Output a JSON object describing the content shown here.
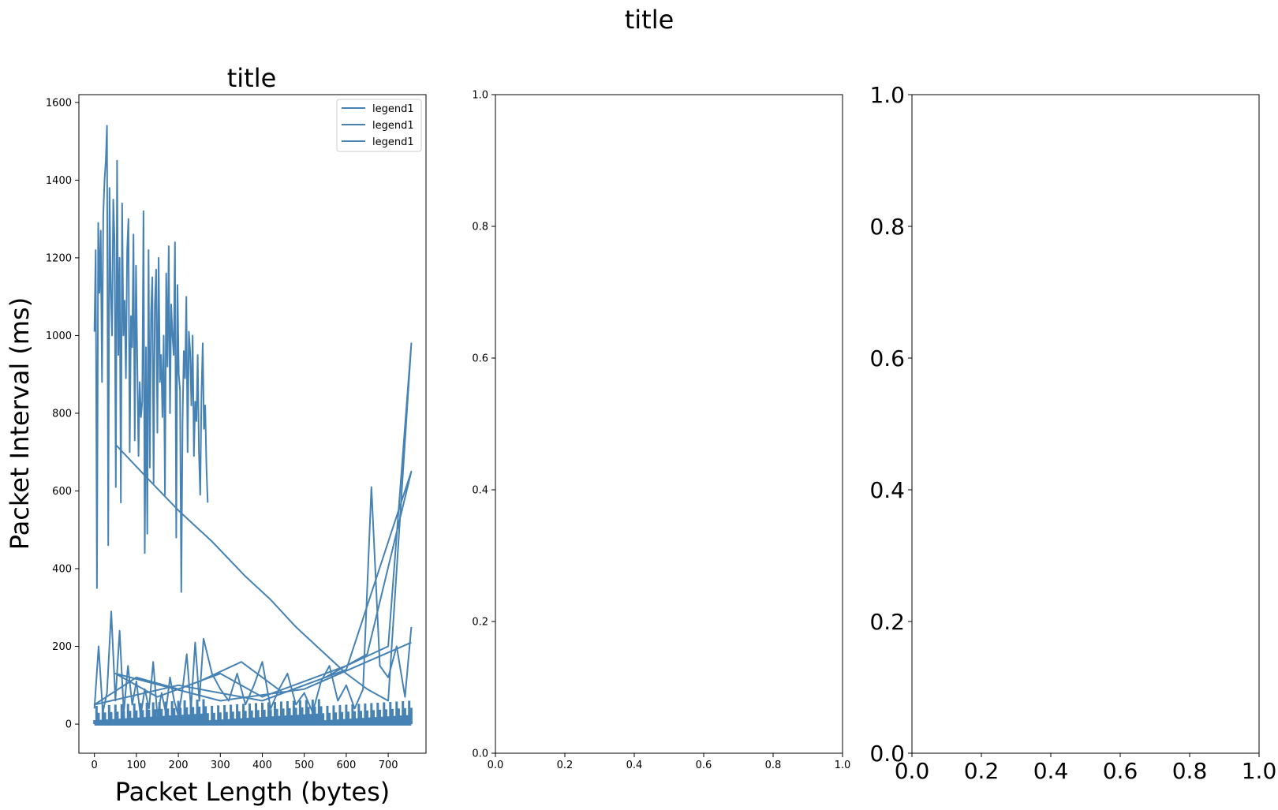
{
  "figure": {
    "suptitle": "title"
  },
  "chart_data": [
    {
      "type": "line",
      "title": "title",
      "xlabel": "Packet Length (bytes)",
      "ylabel": "Packet Interval (ms)",
      "xlim": [
        -37,
        790
      ],
      "ylim": [
        -75,
        1620
      ],
      "xticks": [
        0,
        100,
        200,
        300,
        400,
        500,
        600,
        700
      ],
      "yticks": [
        0,
        200,
        400,
        600,
        800,
        1000,
        1200,
        1400,
        1600
      ],
      "grid": false,
      "legend": {
        "position": "top-right",
        "entries": [
          "legend1",
          "legend1",
          "legend1"
        ]
      },
      "color": "#4682b4",
      "series": [
        {
          "name": "legend1",
          "x": [
            0,
            3,
            6,
            9,
            12,
            15,
            18,
            21,
            24,
            27,
            30,
            33,
            36,
            39,
            42,
            45,
            48,
            51,
            54,
            57,
            60,
            63,
            66,
            69,
            72,
            75,
            78,
            81,
            84,
            87,
            90,
            93,
            96,
            99,
            102,
            105,
            108,
            111,
            114,
            117,
            120,
            123,
            126,
            129,
            132,
            135,
            138,
            141,
            144,
            147,
            150,
            153,
            156,
            159,
            162,
            165,
            168,
            171,
            174,
            177,
            180,
            183,
            186,
            189,
            192,
            195,
            198,
            201,
            204,
            207,
            210,
            213,
            216,
            219,
            222,
            225,
            228,
            231,
            234,
            237,
            240,
            243,
            246,
            249,
            252,
            255,
            258,
            261,
            264,
            267,
            270
          ],
          "y": [
            1010,
            1220,
            350,
            1290,
            1110,
            1270,
            880,
            1310,
            1400,
            1450,
            1540,
            460,
            1380,
            1120,
            1000,
            1350,
            1240,
            610,
            1450,
            950,
            1200,
            570,
            1340,
            1000,
            1090,
            890,
            1220,
            1300,
            700,
            1050,
            970,
            1260,
            730,
            1180,
            930,
            690,
            880,
            790,
            830,
            1320,
            440,
            970,
            490,
            1220,
            660,
            1060,
            1150,
            620,
            1080,
            1170,
            750,
            1200,
            880,
            950,
            790,
            1000,
            590,
            1160,
            920,
            1230,
            800,
            1080,
            1000,
            950,
            1240,
            480,
            1130,
            900,
            860,
            340,
            780,
            960,
            890,
            1100,
            700,
            1010,
            960,
            820,
            1000,
            690,
            830,
            780,
            950,
            700,
            590,
            850,
            980,
            760,
            820,
            660,
            570
          ]
        },
        {
          "name": "legend1",
          "x": [
            0,
            10,
            20,
            30,
            40,
            50,
            60,
            70,
            80,
            90,
            100,
            110,
            120,
            130,
            140,
            150,
            160,
            170,
            180,
            190,
            200,
            210,
            220,
            230,
            240,
            250,
            260,
            280,
            300,
            320,
            340,
            360,
            380,
            400,
            420,
            440,
            460,
            480,
            500,
            520,
            540,
            560,
            580,
            600,
            620,
            640,
            660,
            680,
            700,
            720,
            740,
            755
          ],
          "y": [
            40,
            200,
            30,
            80,
            290,
            60,
            240,
            30,
            150,
            50,
            110,
            20,
            90,
            40,
            160,
            20,
            80,
            30,
            120,
            60,
            20,
            90,
            180,
            40,
            210,
            60,
            220,
            130,
            90,
            60,
            130,
            50,
            100,
            160,
            40,
            90,
            130,
            50,
            80,
            30,
            110,
            150,
            60,
            100,
            40,
            90,
            610,
            150,
            120,
            200,
            70,
            250
          ]
        },
        {
          "name": "legend1",
          "x": [
            50,
            120,
            200,
            280,
            360,
            420,
            480,
            540,
            600,
            650,
            700,
            755,
            700,
            600,
            500,
            400,
            300,
            200,
            100,
            0,
            200,
            400,
            600,
            755,
            650,
            550,
            450,
            350,
            250,
            150,
            50,
            300,
            500,
            755
          ],
          "y": [
            720,
            640,
            550,
            470,
            380,
            320,
            250,
            190,
            130,
            90,
            60,
            980,
            200,
            150,
            110,
            70,
            130,
            90,
            120,
            50,
            100,
            60,
            140,
            650,
            180,
            120,
            80,
            160,
            110,
            70,
            130,
            60,
            90,
            210
          ]
        }
      ]
    },
    {
      "type": "line",
      "title": "",
      "xlim": [
        0,
        1
      ],
      "ylim": [
        0,
        1
      ],
      "xticks": [
        "0.0",
        "0.2",
        "0.4",
        "0.6",
        "0.8",
        "1.0"
      ],
      "yticks": [
        "0.0",
        "0.2",
        "0.4",
        "0.6",
        "0.8",
        "1.0"
      ],
      "series": []
    },
    {
      "type": "line",
      "title": "",
      "xlim": [
        0,
        1
      ],
      "ylim": [
        0,
        1
      ],
      "xticks": [
        "0.0",
        "0.2",
        "0.4",
        "0.6",
        "0.8",
        "1.0"
      ],
      "yticks": [
        "0.0",
        "0.2",
        "0.4",
        "0.6",
        "0.8",
        "1.0"
      ],
      "series": []
    }
  ]
}
